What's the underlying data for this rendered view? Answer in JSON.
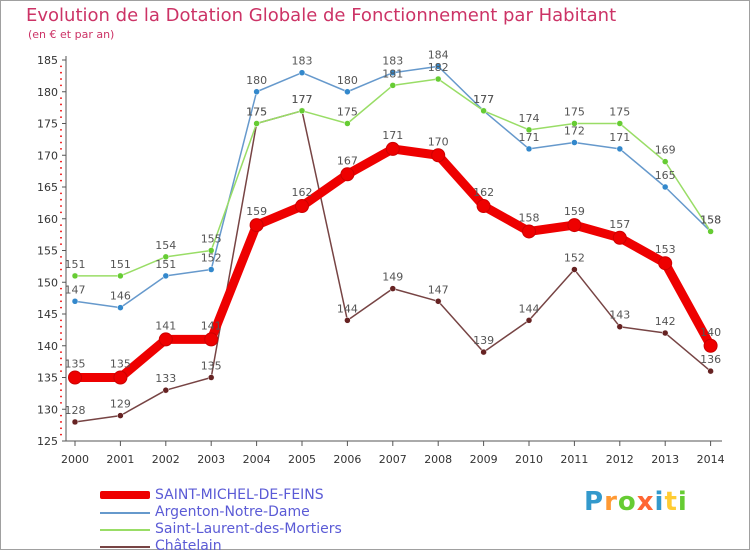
{
  "header": {
    "title": "Evolution de la Dotation Globale de Fonctionnement par Habitant",
    "subtitle": "(en € et par an)"
  },
  "logo": {
    "text": "Proxiti",
    "letter_colors": [
      "#3399cc",
      "#ff9933",
      "#66cc33",
      "#ff6633",
      "#3399cc",
      "#ffcc33",
      "#66cc33"
    ]
  },
  "chart_data": {
    "type": "line",
    "title": "Evolution de la Dotation Globale de Fonctionnement par Habitant",
    "subtitle": "(en € et par an)",
    "x": [
      "2000",
      "2001",
      "2002",
      "2003",
      "2004",
      "2005",
      "2006",
      "2007",
      "2008",
      "2009",
      "2010",
      "2011",
      "2012",
      "2013",
      "2014"
    ],
    "ylim": [
      125,
      185
    ],
    "yticks": [
      125,
      130,
      135,
      140,
      145,
      150,
      155,
      160,
      165,
      170,
      175,
      180,
      185
    ],
    "grid": false,
    "legend_position": "bottom-left",
    "series": [
      {
        "name": "SAINT-MICHEL-DE-FEINS",
        "color": "#ee0000",
        "marker_color": "#ee0000",
        "values": [
          135,
          135,
          141,
          141,
          159,
          162,
          167,
          171,
          170,
          162,
          158,
          159,
          157,
          153,
          140
        ]
      },
      {
        "name": "Argenton-Notre-Dame",
        "color": "#6699cc",
        "marker_color": "#3388cc",
        "values": [
          147,
          146,
          151,
          152,
          180,
          183,
          180,
          183,
          184,
          177,
          171,
          172,
          171,
          165,
          158
        ]
      },
      {
        "name": "Saint-Laurent-des-Mortiers",
        "color": "#99dd66",
        "marker_color": "#66cc33",
        "values": [
          151,
          151,
          154,
          155,
          175,
          177,
          175,
          181,
          182,
          177,
          174,
          175,
          175,
          169,
          158
        ]
      },
      {
        "name": "Châtelain",
        "color": "#774444",
        "marker_color": "#662222",
        "values": [
          128,
          129,
          133,
          135,
          175,
          177,
          144,
          149,
          147,
          139,
          144,
          152,
          143,
          142,
          136
        ]
      }
    ]
  }
}
